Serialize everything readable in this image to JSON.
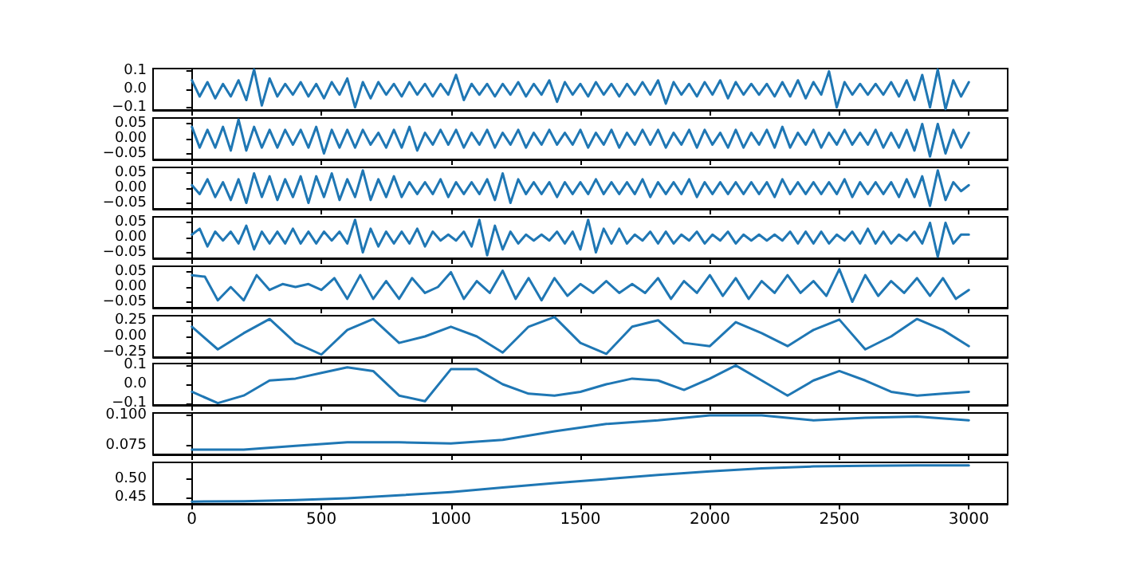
{
  "chart_data": [
    {
      "type": "line",
      "tick_labels": "y",
      "xlim": [
        -150,
        3150
      ],
      "xticks": [
        0,
        500,
        1000,
        1500,
        2000,
        2500,
        3000
      ],
      "ylim": [
        -0.115,
        0.115
      ],
      "yticks": [
        {
          "value": -0.1,
          "label": "−0.1"
        },
        {
          "value": 0,
          "label": "0.0"
        },
        0.1
      ],
      "x": [
        0,
        30,
        60,
        90,
        120,
        150,
        180,
        210,
        240,
        270,
        300,
        330,
        360,
        390,
        420,
        450,
        480,
        510,
        540,
        570,
        600,
        630,
        660,
        690,
        720,
        750,
        780,
        810,
        840,
        870,
        900,
        930,
        960,
        990,
        1020,
        1050,
        1080,
        1110,
        1140,
        1170,
        1200,
        1230,
        1260,
        1290,
        1320,
        1350,
        1380,
        1410,
        1440,
        1470,
        1500,
        1530,
        1560,
        1590,
        1620,
        1650,
        1680,
        1710,
        1740,
        1770,
        1800,
        1830,
        1860,
        1890,
        1920,
        1950,
        1980,
        2010,
        2040,
        2070,
        2100,
        2130,
        2160,
        2190,
        2220,
        2250,
        2280,
        2310,
        2340,
        2370,
        2400,
        2430,
        2460,
        2490,
        2520,
        2550,
        2580,
        2610,
        2640,
        2670,
        2700,
        2730,
        2760,
        2790,
        2820,
        2850,
        2880,
        2910,
        2940,
        2970,
        3000
      ],
      "series": [
        {
          "color": "#1f77b4",
          "values": [
            0.05,
            -0.04,
            0.04,
            -0.05,
            0.03,
            -0.04,
            0.05,
            -0.06,
            0.11,
            -0.09,
            0.06,
            -0.04,
            0.03,
            -0.03,
            0.04,
            -0.04,
            0.03,
            -0.05,
            0.04,
            -0.03,
            0.06,
            -0.1,
            0.04,
            -0.05,
            0.04,
            -0.03,
            0.03,
            -0.04,
            0.04,
            -0.03,
            0.03,
            -0.04,
            0.03,
            -0.03,
            0.08,
            -0.06,
            0.03,
            -0.03,
            0.03,
            -0.04,
            0.03,
            -0.03,
            0.04,
            -0.04,
            0.03,
            -0.03,
            0.05,
            -0.07,
            0.04,
            -0.03,
            0.03,
            -0.04,
            0.04,
            -0.03,
            0.03,
            -0.04,
            0.03,
            -0.03,
            0.04,
            -0.03,
            0.05,
            -0.08,
            0.04,
            -0.03,
            0.03,
            -0.04,
            0.04,
            -0.03,
            0.05,
            -0.05,
            0.04,
            -0.03,
            0.03,
            -0.03,
            0.03,
            -0.04,
            0.04,
            -0.04,
            0.05,
            -0.05,
            0.04,
            -0.03,
            0.1,
            -0.1,
            0.04,
            -0.03,
            0.03,
            -0.03,
            0.03,
            -0.03,
            0.04,
            -0.04,
            0.05,
            -0.06,
            0.08,
            -0.1,
            0.11,
            -0.11,
            0.05,
            -0.04,
            0.04
          ]
        }
      ]
    },
    {
      "type": "line",
      "tick_labels": "y",
      "xlim": [
        -150,
        3150
      ],
      "xticks": [
        0,
        500,
        1000,
        1500,
        2000,
        2500,
        3000
      ],
      "ylim": [
        -0.07,
        0.07
      ],
      "yticks": [
        {
          "value": -0.05,
          "label": "−0.05"
        },
        {
          "value": 0,
          "label": "0.00"
        },
        0.05
      ],
      "x": [
        0,
        30,
        60,
        90,
        120,
        150,
        180,
        210,
        240,
        270,
        300,
        330,
        360,
        390,
        420,
        450,
        480,
        510,
        540,
        570,
        600,
        630,
        660,
        690,
        720,
        750,
        780,
        810,
        840,
        870,
        900,
        930,
        960,
        990,
        1020,
        1050,
        1080,
        1110,
        1140,
        1170,
        1200,
        1230,
        1260,
        1290,
        1320,
        1350,
        1380,
        1410,
        1440,
        1470,
        1500,
        1530,
        1560,
        1590,
        1620,
        1650,
        1680,
        1710,
        1740,
        1770,
        1800,
        1830,
        1860,
        1890,
        1920,
        1950,
        1980,
        2010,
        2040,
        2070,
        2100,
        2130,
        2160,
        2190,
        2220,
        2250,
        2280,
        2310,
        2340,
        2370,
        2400,
        2430,
        2460,
        2490,
        2520,
        2550,
        2580,
        2610,
        2640,
        2670,
        2700,
        2730,
        2760,
        2790,
        2820,
        2850,
        2880,
        2910,
        2940,
        2970,
        3000
      ],
      "series": [
        {
          "color": "#1f77b4",
          "values": [
            0.04,
            -0.03,
            0.03,
            -0.03,
            0.04,
            -0.04,
            0.065,
            -0.04,
            0.04,
            -0.03,
            0.03,
            -0.03,
            0.03,
            -0.02,
            0.03,
            -0.03,
            0.04,
            -0.05,
            0.03,
            -0.03,
            0.03,
            -0.03,
            0.03,
            -0.02,
            0.02,
            -0.03,
            0.03,
            -0.03,
            0.04,
            -0.04,
            0.02,
            -0.02,
            0.03,
            -0.02,
            0.03,
            -0.03,
            0.02,
            -0.02,
            0.03,
            -0.03,
            0.02,
            -0.02,
            0.03,
            -0.03,
            0.02,
            -0.02,
            0.03,
            -0.02,
            0.02,
            -0.02,
            0.03,
            -0.03,
            0.02,
            -0.02,
            0.03,
            -0.03,
            0.02,
            -0.02,
            0.03,
            -0.02,
            0.03,
            -0.03,
            0.02,
            -0.02,
            0.03,
            -0.03,
            0.03,
            -0.02,
            0.02,
            -0.03,
            0.03,
            -0.03,
            0.02,
            -0.02,
            0.03,
            -0.03,
            0.04,
            -0.03,
            0.02,
            -0.02,
            0.03,
            -0.03,
            0.02,
            -0.02,
            0.03,
            -0.02,
            0.02,
            -0.02,
            0.03,
            -0.03,
            0.02,
            -0.03,
            0.03,
            -0.04,
            0.05,
            -0.06,
            0.05,
            -0.05,
            0.03,
            -0.03,
            0.02
          ]
        }
      ]
    },
    {
      "type": "line",
      "tick_labels": "y",
      "xlim": [
        -150,
        3150
      ],
      "xticks": [
        0,
        500,
        1000,
        1500,
        2000,
        2500,
        3000
      ],
      "ylim": [
        -0.07,
        0.07
      ],
      "yticks": [
        {
          "value": -0.05,
          "label": "−0.05"
        },
        {
          "value": 0,
          "label": "0.00"
        },
        0.05
      ],
      "x": [
        0,
        30,
        60,
        90,
        120,
        150,
        180,
        210,
        240,
        270,
        300,
        330,
        360,
        390,
        420,
        450,
        480,
        510,
        540,
        570,
        600,
        630,
        660,
        690,
        720,
        750,
        780,
        810,
        840,
        870,
        900,
        930,
        960,
        990,
        1020,
        1050,
        1080,
        1110,
        1140,
        1170,
        1200,
        1230,
        1260,
        1290,
        1320,
        1350,
        1380,
        1410,
        1440,
        1470,
        1500,
        1530,
        1560,
        1590,
        1620,
        1650,
        1680,
        1710,
        1740,
        1770,
        1800,
        1830,
        1860,
        1890,
        1920,
        1950,
        1980,
        2010,
        2040,
        2070,
        2100,
        2130,
        2160,
        2190,
        2220,
        2250,
        2280,
        2310,
        2340,
        2370,
        2400,
        2430,
        2460,
        2490,
        2520,
        2550,
        2580,
        2610,
        2640,
        2670,
        2700,
        2730,
        2760,
        2790,
        2820,
        2850,
        2880,
        2910,
        2940,
        2970,
        3000
      ],
      "series": [
        {
          "color": "#1f77b4",
          "values": [
            0.01,
            -0.02,
            0.03,
            -0.03,
            0.02,
            -0.04,
            0.03,
            -0.05,
            0.05,
            -0.03,
            0.04,
            -0.04,
            0.03,
            -0.03,
            0.04,
            -0.05,
            0.04,
            -0.03,
            0.05,
            -0.04,
            0.03,
            -0.03,
            0.06,
            -0.04,
            0.03,
            -0.03,
            0.04,
            -0.03,
            0.02,
            -0.02,
            0.02,
            -0.02,
            0.03,
            -0.03,
            0.02,
            -0.02,
            0.02,
            -0.02,
            0.03,
            -0.04,
            0.05,
            -0.05,
            0.03,
            -0.02,
            0.02,
            -0.02,
            0.02,
            -0.03,
            0.02,
            -0.02,
            0.02,
            -0.02,
            0.03,
            -0.02,
            0.02,
            -0.02,
            0.02,
            -0.02,
            0.03,
            -0.03,
            0.02,
            -0.02,
            0.02,
            -0.02,
            0.03,
            -0.03,
            0.02,
            -0.02,
            0.02,
            -0.02,
            0.02,
            -0.02,
            0.02,
            -0.02,
            0.02,
            -0.03,
            0.03,
            -0.02,
            0.02,
            -0.02,
            0.02,
            -0.02,
            0.02,
            -0.02,
            0.03,
            -0.03,
            0.02,
            -0.02,
            0.02,
            -0.02,
            0.02,
            -0.03,
            0.03,
            -0.03,
            0.04,
            -0.06,
            0.06,
            -0.04,
            0.02,
            -0.01,
            0.01
          ]
        }
      ]
    },
    {
      "type": "line",
      "tick_labels": "y",
      "xlim": [
        -150,
        3150
      ],
      "xticks": [
        0,
        500,
        1000,
        1500,
        2000,
        2500,
        3000
      ],
      "ylim": [
        -0.07,
        0.07
      ],
      "yticks": [
        {
          "value": -0.05,
          "label": "−0.05"
        },
        {
          "value": 0,
          "label": "0.00"
        },
        0.05
      ],
      "x": [
        0,
        30,
        60,
        90,
        120,
        150,
        180,
        210,
        240,
        270,
        300,
        330,
        360,
        390,
        420,
        450,
        480,
        510,
        540,
        570,
        600,
        630,
        660,
        690,
        720,
        750,
        780,
        810,
        840,
        870,
        900,
        930,
        960,
        990,
        1020,
        1050,
        1080,
        1110,
        1140,
        1170,
        1200,
        1230,
        1260,
        1290,
        1320,
        1350,
        1380,
        1410,
        1440,
        1470,
        1500,
        1530,
        1560,
        1590,
        1620,
        1650,
        1680,
        1710,
        1740,
        1770,
        1800,
        1830,
        1860,
        1890,
        1920,
        1950,
        1980,
        2010,
        2040,
        2070,
        2100,
        2130,
        2160,
        2190,
        2220,
        2250,
        2280,
        2310,
        2340,
        2370,
        2400,
        2430,
        2460,
        2490,
        2520,
        2550,
        2580,
        2610,
        2640,
        2670,
        2700,
        2730,
        2760,
        2790,
        2820,
        2850,
        2880,
        2910,
        2940,
        2970,
        3000
      ],
      "series": [
        {
          "color": "#1f77b4",
          "values": [
            0.01,
            0.03,
            -0.03,
            0.02,
            -0.01,
            0.02,
            -0.02,
            0.04,
            -0.04,
            0.02,
            -0.02,
            0.02,
            -0.02,
            0.03,
            -0.02,
            0.02,
            -0.02,
            0.02,
            -0.01,
            0.02,
            -0.02,
            0.06,
            -0.05,
            0.03,
            -0.03,
            0.02,
            -0.02,
            0.02,
            -0.02,
            0.03,
            -0.03,
            0.02,
            -0.01,
            0.01,
            -0.01,
            0.02,
            -0.03,
            0.06,
            -0.06,
            0.04,
            -0.04,
            0.02,
            -0.02,
            0.01,
            -0.01,
            0.01,
            -0.01,
            0.02,
            -0.02,
            0.02,
            -0.04,
            0.06,
            -0.05,
            0.03,
            -0.02,
            0.03,
            -0.02,
            0.01,
            -0.01,
            0.02,
            -0.02,
            0.02,
            -0.02,
            0.01,
            -0.01,
            0.02,
            -0.02,
            0.01,
            -0.01,
            0.02,
            -0.02,
            0.01,
            -0.01,
            0.01,
            -0.01,
            0.01,
            -0.01,
            0.02,
            -0.02,
            0.02,
            -0.02,
            0.02,
            -0.02,
            0.01,
            -0.01,
            0.02,
            -0.02,
            0.03,
            -0.02,
            0.02,
            -0.02,
            0.01,
            -0.01,
            0.02,
            -0.02,
            0.05,
            -0.065,
            0.05,
            -0.02,
            0.01,
            0.01
          ]
        }
      ]
    },
    {
      "type": "line",
      "tick_labels": "y",
      "xlim": [
        -150,
        3150
      ],
      "xticks": [
        0,
        500,
        1000,
        1500,
        2000,
        2500,
        3000
      ],
      "ylim": [
        -0.07,
        0.07
      ],
      "yticks": [
        {
          "value": -0.05,
          "label": "−0.05"
        },
        {
          "value": 0,
          "label": "0.00"
        },
        0.05
      ],
      "x": [
        0,
        50,
        100,
        150,
        200,
        250,
        300,
        350,
        400,
        450,
        500,
        550,
        600,
        650,
        700,
        750,
        800,
        850,
        900,
        950,
        1000,
        1050,
        1100,
        1150,
        1200,
        1250,
        1300,
        1350,
        1400,
        1450,
        1500,
        1550,
        1600,
        1650,
        1700,
        1750,
        1800,
        1850,
        1900,
        1950,
        2000,
        2050,
        2100,
        2150,
        2200,
        2250,
        2300,
        2350,
        2400,
        2450,
        2500,
        2550,
        2600,
        2650,
        2700,
        2750,
        2800,
        2850,
        2900,
        2950,
        3000
      ],
      "series": [
        {
          "color": "#1f77b4",
          "values": [
            0.04,
            0.035,
            -0.045,
            0.0,
            -0.045,
            0.04,
            -0.01,
            0.01,
            0.0,
            0.01,
            -0.01,
            0.03,
            -0.04,
            0.04,
            -0.04,
            0.02,
            -0.04,
            0.03,
            -0.02,
            0.0,
            0.05,
            -0.04,
            0.02,
            -0.02,
            0.055,
            -0.04,
            0.03,
            -0.045,
            0.03,
            -0.03,
            0.01,
            -0.02,
            0.02,
            -0.02,
            0.01,
            -0.02,
            0.03,
            -0.04,
            0.02,
            -0.02,
            0.04,
            -0.03,
            0.03,
            -0.04,
            0.02,
            -0.02,
            0.04,
            -0.02,
            0.02,
            -0.03,
            0.06,
            -0.05,
            0.04,
            -0.03,
            0.02,
            -0.02,
            0.03,
            -0.03,
            0.03,
            -0.04,
            -0.01
          ]
        }
      ]
    },
    {
      "type": "line",
      "tick_labels": "y",
      "xlim": [
        -150,
        3150
      ],
      "xticks": [
        0,
        500,
        1000,
        1500,
        2000,
        2500,
        3000
      ],
      "ylim": [
        -0.32,
        0.32
      ],
      "yticks": [
        {
          "value": -0.25,
          "label": "−0.25"
        },
        {
          "value": 0,
          "label": "0.00"
        },
        0.25
      ],
      "x": [
        0,
        100,
        200,
        300,
        400,
        500,
        600,
        700,
        800,
        900,
        1000,
        1100,
        1200,
        1300,
        1400,
        1500,
        1600,
        1700,
        1800,
        1900,
        2000,
        2100,
        2200,
        2300,
        2400,
        2500,
        2600,
        2700,
        2800,
        2900,
        3000
      ],
      "series": [
        {
          "color": "#1f77b4",
          "values": [
            0.15,
            -0.2,
            0.05,
            0.27,
            -0.1,
            -0.28,
            0.1,
            0.27,
            -0.1,
            0.0,
            0.15,
            0.0,
            -0.25,
            0.15,
            0.3,
            -0.1,
            -0.27,
            0.15,
            0.25,
            -0.1,
            -0.15,
            0.22,
            0.05,
            -0.15,
            0.1,
            0.26,
            -0.2,
            0.0,
            0.27,
            0.1,
            -0.15
          ]
        }
      ]
    },
    {
      "type": "line",
      "tick_labels": "y",
      "xlim": [
        -150,
        3150
      ],
      "xticks": [
        0,
        500,
        1000,
        1500,
        2000,
        2500,
        3000
      ],
      "ylim": [
        -0.11,
        0.11
      ],
      "yticks": [
        {
          "value": -0.1,
          "label": "−0.1"
        },
        {
          "value": 0,
          "label": "0.0"
        },
        0.1
      ],
      "x": [
        0,
        100,
        200,
        300,
        400,
        500,
        600,
        700,
        800,
        900,
        1000,
        1100,
        1200,
        1300,
        1400,
        1500,
        1600,
        1700,
        1800,
        1900,
        2000,
        2100,
        2200,
        2300,
        2400,
        2500,
        2600,
        2700,
        2800,
        2900,
        3000
      ],
      "series": [
        {
          "color": "#1f77b4",
          "values": [
            -0.04,
            -0.1,
            -0.06,
            0.02,
            0.03,
            0.06,
            0.09,
            0.07,
            -0.06,
            -0.09,
            0.08,
            0.08,
            0.0,
            -0.05,
            -0.06,
            -0.04,
            0.0,
            0.03,
            0.02,
            -0.03,
            0.03,
            0.1,
            0.02,
            -0.06,
            0.02,
            0.07,
            0.02,
            -0.04,
            -0.06,
            -0.05,
            -0.04
          ]
        }
      ]
    },
    {
      "type": "line",
      "tick_labels": "y",
      "xlim": [
        -150,
        3150
      ],
      "xticks": [
        0,
        500,
        1000,
        1500,
        2000,
        2500,
        3000
      ],
      "ylim": [
        0.068,
        0.102
      ],
      "yticks": [
        0.075,
        {
          "value": 0.1,
          "label": "0.100"
        }
      ],
      "x": [
        0,
        200,
        400,
        600,
        800,
        1000,
        1200,
        1400,
        1600,
        1800,
        2000,
        2200,
        2400,
        2600,
        2800,
        3000
      ],
      "series": [
        {
          "color": "#1f77b4",
          "values": [
            0.072,
            0.072,
            0.075,
            0.078,
            0.078,
            0.077,
            0.08,
            0.087,
            0.093,
            0.096,
            0.1,
            0.1,
            0.096,
            0.098,
            0.099,
            0.096
          ]
        }
      ]
    },
    {
      "type": "line",
      "xlim": [
        -150,
        3150
      ],
      "xticks": [
        0,
        500,
        1000,
        1500,
        2000,
        2500,
        3000
      ],
      "ylim": [
        0.433,
        0.545
      ],
      "yticks": [
        {
          "value": 0.45,
          "label": "0.45"
        },
        {
          "value": 0.5,
          "label": "0.50"
        }
      ],
      "x": [
        0,
        200,
        400,
        600,
        800,
        1000,
        1200,
        1400,
        1600,
        1800,
        2000,
        2200,
        2400,
        2600,
        2800,
        3000
      ],
      "series": [
        {
          "color": "#1f77b4",
          "values": [
            0.439,
            0.44,
            0.443,
            0.448,
            0.456,
            0.465,
            0.477,
            0.489,
            0.5,
            0.511,
            0.521,
            0.529,
            0.534,
            0.536,
            0.537,
            0.537
          ]
        }
      ]
    }
  ]
}
